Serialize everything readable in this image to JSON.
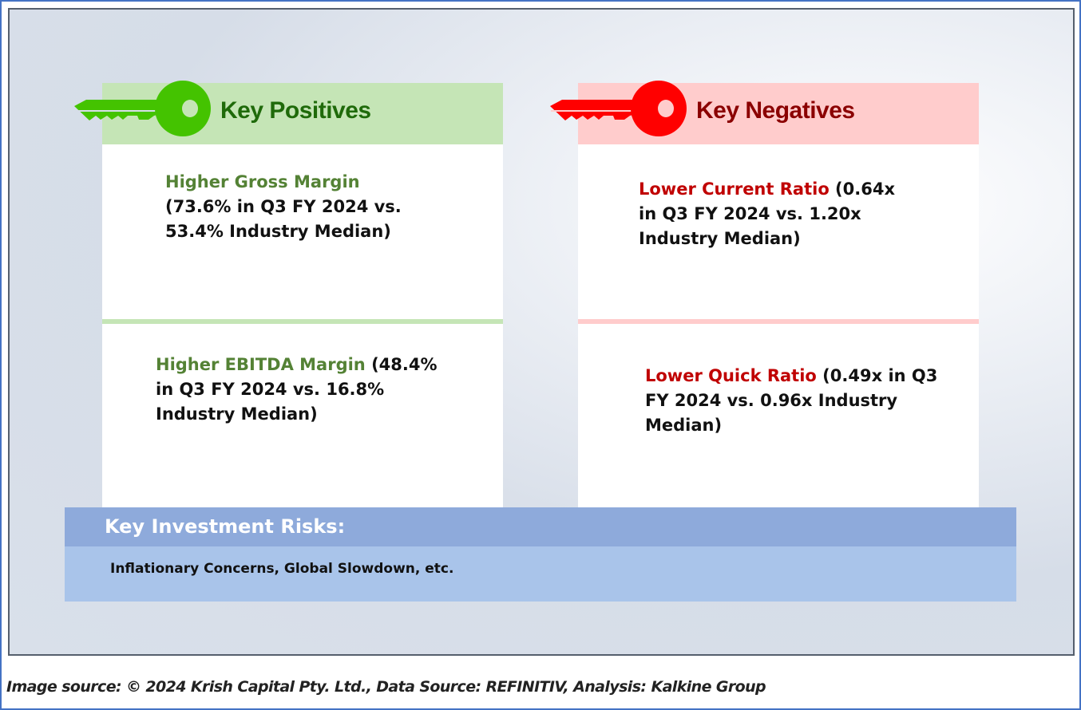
{
  "positives": {
    "title": "Key Positives",
    "color": "#44c300",
    "items": [
      {
        "highlight": "Higher Gross Margin",
        "rest": " (73.6% in Q3 FY 2024 vs. 53.4% Industry Median)"
      },
      {
        "highlight": "Higher EBITDA Margin",
        "rest": " (48.4% in Q3 FY 2024 vs. 16.8% Industry Median)"
      }
    ]
  },
  "negatives": {
    "title": "Key Negatives",
    "color": "#ff0000",
    "items": [
      {
        "highlight": "Lower Current Ratio",
        "rest": " (0.64x in Q3 FY 2024 vs. 1.20x Industry Median)"
      },
      {
        "highlight": "Lower Quick Ratio",
        "rest": " (0.49x in Q3 FY 2024 vs. 0.96x Industry Median)"
      }
    ]
  },
  "risks": {
    "title": "Key Investment Risks:",
    "body": "Inflationary Concerns, Global Slowdown, etc."
  },
  "footer": "Image source: © 2024 Krish Capital Pty. Ltd., Data Source: REFINITIV, Analysis: Kalkine Group"
}
